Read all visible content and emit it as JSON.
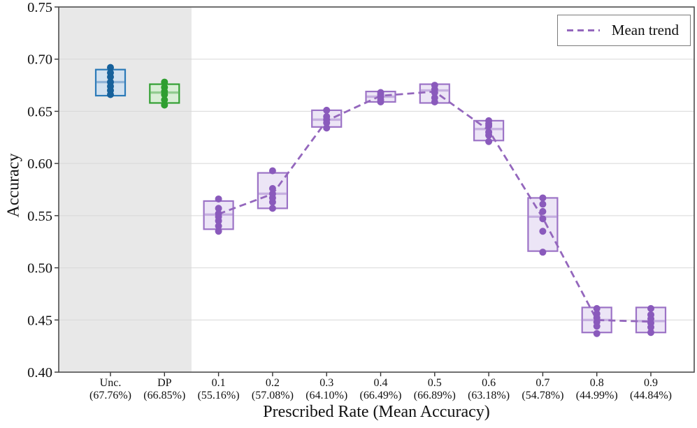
{
  "chart_data": {
    "type": "box",
    "title": "",
    "xlabel": "Prescribed Rate (Mean Accuracy)",
    "ylabel": "Accuracy",
    "ylim": [
      0.4,
      0.75
    ],
    "yticks": [
      0.4,
      0.45,
      0.5,
      0.55,
      0.6,
      0.65,
      0.7,
      0.75
    ],
    "grid": "horizontal",
    "legend": {
      "label": "Mean trend",
      "position": "upper-right",
      "line_style": "dashed",
      "line_color": "#9467bd"
    },
    "baseline_region": {
      "covers": [
        "Unc.",
        "DP"
      ],
      "fill": "#e8e8e8"
    },
    "palettes": {
      "blue": {
        "edge": "#2b7ab8",
        "fill": "#d2e1ef",
        "median": "#8fb3d6",
        "dot": "#16619b"
      },
      "green": {
        "edge": "#33a033",
        "fill": "#d9eed6",
        "median": "#92cc90",
        "dot": "#2e9e30"
      },
      "purple": {
        "edge": "#9c73c6",
        "fill": "#ece5f6",
        "median": "#c6b0e0",
        "dot": "#8a5abc"
      }
    },
    "categories": [
      {
        "label": "Unc.",
        "sublabel": "(67.76%)",
        "mean": 0.6776,
        "q1": 0.665,
        "q3": 0.69,
        "median": 0.678,
        "points": [
          0.692,
          0.687,
          0.683,
          0.678,
          0.674,
          0.67,
          0.666
        ],
        "palette": "blue"
      },
      {
        "label": "DP",
        "sublabel": "(66.85%)",
        "mean": 0.6685,
        "q1": 0.658,
        "q3": 0.676,
        "median": 0.668,
        "points": [
          0.678,
          0.673,
          0.669,
          0.666,
          0.661,
          0.656
        ],
        "palette": "green"
      },
      {
        "label": "0.1",
        "sublabel": "(55.16%)",
        "mean": 0.5516,
        "q1": 0.537,
        "q3": 0.564,
        "median": 0.551,
        "points": [
          0.566,
          0.557,
          0.552,
          0.549,
          0.545,
          0.54,
          0.535
        ],
        "palette": "purple"
      },
      {
        "label": "0.2",
        "sublabel": "(57.08%)",
        "mean": 0.5708,
        "q1": 0.557,
        "q3": 0.591,
        "median": 0.571,
        "points": [
          0.593,
          0.576,
          0.571,
          0.567,
          0.563,
          0.557
        ],
        "palette": "purple"
      },
      {
        "label": "0.3",
        "sublabel": "(64.10%)",
        "mean": 0.641,
        "q1": 0.635,
        "q3": 0.651,
        "median": 0.642,
        "points": [
          0.651,
          0.645,
          0.642,
          0.639,
          0.634
        ],
        "palette": "purple"
      },
      {
        "label": "0.4",
        "sublabel": "(66.49%)",
        "mean": 0.6649,
        "q1": 0.659,
        "q3": 0.669,
        "median": 0.664,
        "points": [
          0.668,
          0.666,
          0.664,
          0.661,
          0.659
        ],
        "palette": "purple"
      },
      {
        "label": "0.5",
        "sublabel": "(66.89%)",
        "mean": 0.6689,
        "q1": 0.658,
        "q3": 0.676,
        "median": 0.67,
        "points": [
          0.675,
          0.671,
          0.668,
          0.663,
          0.659
        ],
        "palette": "purple"
      },
      {
        "label": "0.6",
        "sublabel": "(63.18%)",
        "mean": 0.6318,
        "q1": 0.622,
        "q3": 0.641,
        "median": 0.633,
        "points": [
          0.641,
          0.638,
          0.636,
          0.63,
          0.627,
          0.621
        ],
        "palette": "purple"
      },
      {
        "label": "0.7",
        "sublabel": "(54.78%)",
        "mean": 0.5478,
        "q1": 0.516,
        "q3": 0.567,
        "median": 0.549,
        "points": [
          0.567,
          0.561,
          0.554,
          0.547,
          0.535,
          0.515
        ],
        "palette": "purple"
      },
      {
        "label": "0.8",
        "sublabel": "(44.99%)",
        "mean": 0.4499,
        "q1": 0.438,
        "q3": 0.462,
        "median": 0.45,
        "points": [
          0.461,
          0.456,
          0.452,
          0.448,
          0.444,
          0.437
        ],
        "palette": "purple"
      },
      {
        "label": "0.9",
        "sublabel": "(44.84%)",
        "mean": 0.4484,
        "q1": 0.438,
        "q3": 0.462,
        "median": 0.449,
        "points": [
          0.461,
          0.455,
          0.451,
          0.447,
          0.443,
          0.438
        ],
        "palette": "purple"
      }
    ],
    "trend": {
      "name": "Mean trend",
      "color": "#9467bd",
      "dash": true,
      "x_labels": [
        "0.1",
        "0.2",
        "0.3",
        "0.4",
        "0.5",
        "0.6",
        "0.7",
        "0.8",
        "0.9"
      ],
      "mean_values": [
        0.5516,
        0.5708,
        0.641,
        0.6649,
        0.6689,
        0.6318,
        0.5478,
        0.4499,
        0.4484
      ]
    }
  }
}
